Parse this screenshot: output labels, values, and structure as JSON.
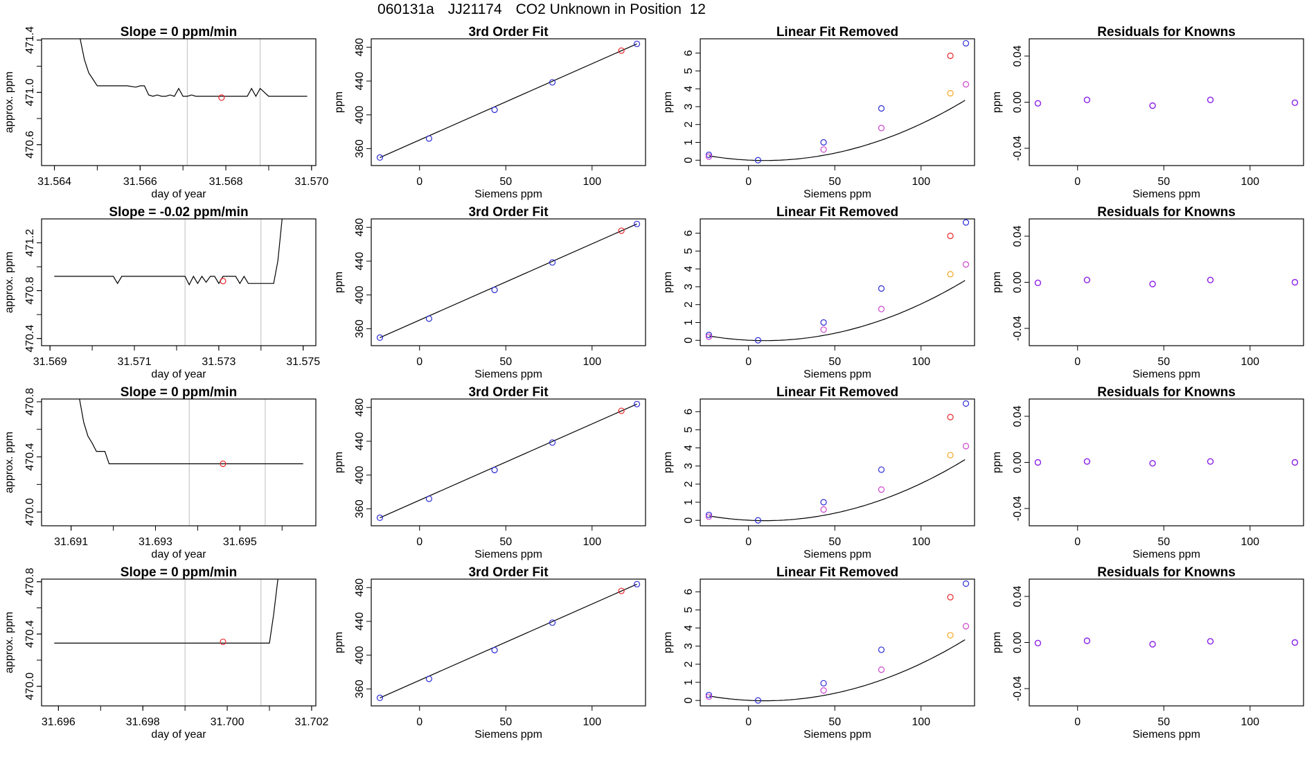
{
  "header": {
    "run": "060131a",
    "tank": "JJ21174",
    "label": "CO2 Unknown in Position  12"
  },
  "colors": {
    "line": "#000000",
    "point_red": "#e8262a",
    "point_blue": "#2b2bd6",
    "point_magenta": "#cc44cc",
    "point_orange": "#f5a623",
    "point_purple": "#8a1ee6",
    "guide": "#bdbdbd"
  },
  "chart_data": [
    {
      "type": "line",
      "row": 1,
      "col": 1,
      "title": "Slope =  0  ppm/min",
      "xlabel": "day of year",
      "ylabel": "approx. ppm",
      "xlim": [
        31.5637,
        31.5701
      ],
      "ylim": [
        470.44,
        471.41
      ],
      "xticks": [
        "31.564",
        "31.566",
        "31.568",
        "31.570"
      ],
      "yticks": [
        "470.6",
        "471.0",
        "471.4"
      ],
      "x": [
        31.5646,
        31.5647,
        31.5648,
        31.5649,
        31.565,
        31.5652,
        31.5653,
        31.5654,
        31.5656,
        31.5657,
        31.5659,
        31.566,
        31.5661,
        31.5662,
        31.5663,
        31.5664,
        31.5665,
        31.5666,
        31.5667,
        31.5668,
        31.5669,
        31.567,
        31.5671,
        31.5672,
        31.5673,
        31.5675,
        31.5676,
        31.5678,
        31.5679,
        31.5681,
        31.5683,
        31.5685,
        31.5686,
        31.5687,
        31.5688,
        31.569,
        31.5692,
        31.5694,
        31.5697,
        31.5699
      ],
      "y": [
        471.41,
        471.25,
        471.15,
        471.1,
        471.05,
        471.05,
        471.05,
        471.05,
        471.05,
        471.05,
        471.04,
        471.05,
        471.05,
        470.98,
        470.97,
        470.98,
        470.97,
        470.97,
        470.98,
        470.97,
        471.03,
        470.97,
        470.97,
        470.98,
        470.97,
        470.97,
        470.97,
        470.97,
        470.97,
        470.97,
        470.97,
        470.97,
        471.03,
        470.97,
        471.03,
        470.97,
        470.97,
        470.97,
        470.97,
        470.97
      ],
      "guides_x": [
        31.5671,
        31.5688
      ],
      "point": [
        31.5679,
        470.96
      ]
    },
    {
      "type": "line",
      "row": 2,
      "col": 1,
      "title": "Slope =  -0.02  ppm/min",
      "xlabel": "day of year",
      "ylabel": "approx. ppm",
      "xlim": [
        31.5688,
        31.5753
      ],
      "ylim": [
        470.34,
        471.4
      ],
      "xticks": [
        "31.569",
        "31.571",
        "31.573",
        "31.575"
      ],
      "yticks": [
        "470.4",
        "470.8",
        "471.2"
      ],
      "x": [
        31.5691,
        31.5695,
        31.57,
        31.5705,
        31.5706,
        31.5707,
        31.571,
        31.5715,
        31.572,
        31.5722,
        31.5723,
        31.5724,
        31.5725,
        31.5726,
        31.5727,
        31.5728,
        31.5729,
        31.573,
        31.5731,
        31.5732,
        31.5733,
        31.5734,
        31.5735,
        31.5736,
        31.5737,
        31.5738,
        31.5739,
        31.574,
        31.5741,
        31.5742,
        31.5743,
        31.5744,
        31.5745
      ],
      "y": [
        470.92,
        470.92,
        470.92,
        470.92,
        470.86,
        470.92,
        470.92,
        470.92,
        470.92,
        470.92,
        470.85,
        470.92,
        470.86,
        470.92,
        470.87,
        470.92,
        470.92,
        470.86,
        470.92,
        470.92,
        470.92,
        470.92,
        470.86,
        470.92,
        470.86,
        470.86,
        470.86,
        470.86,
        470.86,
        470.86,
        470.86,
        471.05,
        471.4
      ],
      "guides_x": [
        31.5722,
        31.574
      ],
      "point": [
        31.5731,
        470.88
      ]
    },
    {
      "type": "line",
      "row": 3,
      "col": 1,
      "title": "Slope =  0  ppm/min",
      "xlabel": "day of year",
      "ylabel": "approx. ppm",
      "xlim": [
        31.6903,
        31.6968
      ],
      "ylim": [
        469.9,
        470.82
      ],
      "xticks": [
        "31.691",
        "31.693",
        "31.695"
      ],
      "yticks": [
        "470.0",
        "470.4",
        "470.8"
      ],
      "x": [
        31.6912,
        31.6913,
        31.6914,
        31.6915,
        31.6916,
        31.6917,
        31.6918,
        31.6919,
        31.692,
        31.6925,
        31.693,
        31.6935,
        31.694,
        31.6945,
        31.695,
        31.6955,
        31.696,
        31.6965
      ],
      "y": [
        470.82,
        470.65,
        470.55,
        470.5,
        470.44,
        470.44,
        470.44,
        470.35,
        470.35,
        470.35,
        470.35,
        470.35,
        470.35,
        470.35,
        470.35,
        470.35,
        470.35,
        470.35
      ],
      "guides_x": [
        31.6938,
        31.6956
      ],
      "point": [
        31.6946,
        470.35
      ]
    },
    {
      "type": "line",
      "row": 4,
      "col": 1,
      "title": "Slope =  0  ppm/min",
      "xlabel": "day of year",
      "ylabel": "approx. ppm",
      "xlim": [
        31.6956,
        31.7021
      ],
      "ylim": [
        469.85,
        470.82
      ],
      "xticks": [
        "31.696",
        "31.698",
        "31.700",
        "31.702"
      ],
      "yticks": [
        "470.0",
        "470.4",
        "470.8"
      ],
      "x": [
        31.6959,
        31.6965,
        31.697,
        31.6975,
        31.698,
        31.6985,
        31.699,
        31.6995,
        31.7,
        31.7005,
        31.701,
        31.7011,
        31.7012
      ],
      "y": [
        470.33,
        470.33,
        470.33,
        470.33,
        470.33,
        470.33,
        470.33,
        470.33,
        470.33,
        470.33,
        470.33,
        470.55,
        470.82
      ],
      "guides_x": [
        31.699,
        31.7008
      ],
      "point": [
        31.6999,
        470.34
      ]
    },
    {
      "type": "scatter",
      "row": 1,
      "col": 2,
      "title": "3rd Order Fit",
      "xlabel": "Siemens ppm",
      "ylabel": "ppm",
      "xlim": [
        -28,
        131
      ],
      "ylim": [
        340,
        490
      ],
      "xticks": [
        0,
        50,
        100
      ],
      "yticks": [
        360,
        400,
        440,
        480
      ],
      "x": [
        -23,
        5.5,
        43.5,
        77,
        117,
        126
      ],
      "y": [
        349.5,
        372,
        406,
        438.5,
        476,
        484
      ],
      "colors": [
        "blue",
        "blue",
        "blue",
        "blue",
        "red",
        "blue"
      ]
    },
    {
      "type": "scatter",
      "row": 2,
      "col": 2,
      "title": "3rd Order Fit",
      "xlabel": "Siemens ppm",
      "ylabel": "ppm",
      "xlim": [
        -28,
        131
      ],
      "ylim": [
        340,
        490
      ],
      "xticks": [
        0,
        50,
        100
      ],
      "yticks": [
        360,
        400,
        440,
        480
      ],
      "x": [
        -23,
        5.5,
        43.5,
        77,
        117,
        126
      ],
      "y": [
        349.5,
        372,
        406,
        438.5,
        476,
        484
      ],
      "colors": [
        "blue",
        "blue",
        "blue",
        "blue",
        "red",
        "blue"
      ]
    },
    {
      "type": "scatter",
      "row": 3,
      "col": 2,
      "title": "3rd Order Fit",
      "xlabel": "Siemens ppm",
      "ylabel": "ppm",
      "xlim": [
        -28,
        131
      ],
      "ylim": [
        340,
        490
      ],
      "xticks": [
        0,
        50,
        100
      ],
      "yticks": [
        360,
        400,
        440,
        480
      ],
      "x": [
        -23,
        5.5,
        43.5,
        77,
        117,
        126
      ],
      "y": [
        349.5,
        372,
        406,
        438.5,
        476,
        484
      ],
      "colors": [
        "blue",
        "blue",
        "blue",
        "blue",
        "red",
        "blue"
      ]
    },
    {
      "type": "scatter",
      "row": 4,
      "col": 2,
      "title": "3rd Order Fit",
      "xlabel": "Siemens ppm",
      "ylabel": "ppm",
      "xlim": [
        -28,
        131
      ],
      "ylim": [
        340,
        490
      ],
      "xticks": [
        0,
        50,
        100
      ],
      "yticks": [
        360,
        400,
        440,
        480
      ],
      "x": [
        -23,
        5.5,
        43.5,
        77,
        117,
        126
      ],
      "y": [
        349.5,
        372,
        406,
        438.5,
        476,
        484
      ],
      "colors": [
        "blue",
        "blue",
        "blue",
        "blue",
        "red",
        "blue"
      ]
    },
    {
      "type": "scatter",
      "row": 1,
      "col": 3,
      "title": "Linear Fit Removed",
      "xlabel": "Siemens ppm",
      "ylabel": "ppm",
      "xlim": [
        -28,
        131
      ],
      "ylim": [
        -0.3,
        6.8
      ],
      "xticks": [
        0,
        50,
        100
      ],
      "yticks": [
        0,
        1,
        2,
        3,
        4,
        5,
        6
      ],
      "x": [
        -23,
        -23,
        5.5,
        43.5,
        43.5,
        77,
        77,
        117,
        117,
        126,
        126
      ],
      "y": [
        0.3,
        0.2,
        0.0,
        1.0,
        0.6,
        2.9,
        1.8,
        5.85,
        3.75,
        6.55,
        4.25
      ],
      "colors": [
        "blue",
        "magenta",
        "blue",
        "blue",
        "magenta",
        "blue",
        "magenta",
        "red",
        "orange",
        "blue",
        "magenta"
      ],
      "curve": [
        0.00025,
        0.0047,
        0.0059
      ]
    },
    {
      "type": "scatter",
      "row": 2,
      "col": 3,
      "title": "Linear Fit Removed",
      "xlabel": "Siemens ppm",
      "ylabel": "ppm",
      "xlim": [
        -28,
        131
      ],
      "ylim": [
        -0.3,
        6.8
      ],
      "xticks": [
        0,
        50,
        100
      ],
      "yticks": [
        0,
        1,
        2,
        3,
        4,
        5,
        6
      ],
      "x": [
        -23,
        -23,
        5.5,
        43.5,
        43.5,
        77,
        77,
        117,
        117,
        126,
        126
      ],
      "y": [
        0.3,
        0.2,
        0.0,
        1.0,
        0.6,
        2.9,
        1.75,
        5.85,
        3.7,
        6.6,
        4.25
      ],
      "colors": [
        "blue",
        "magenta",
        "blue",
        "blue",
        "magenta",
        "blue",
        "magenta",
        "red",
        "orange",
        "blue",
        "magenta"
      ],
      "curve": [
        0.00025,
        0.0047,
        0.0059
      ]
    },
    {
      "type": "scatter",
      "row": 3,
      "col": 3,
      "title": "Linear Fit Removed",
      "xlabel": "Siemens ppm",
      "ylabel": "ppm",
      "xlim": [
        -28,
        131
      ],
      "ylim": [
        -0.3,
        6.7
      ],
      "xticks": [
        0,
        50,
        100
      ],
      "yticks": [
        0,
        1,
        2,
        3,
        4,
        5,
        6
      ],
      "x": [
        -23,
        -23,
        5.5,
        43.5,
        43.5,
        77,
        77,
        117,
        117,
        126,
        126
      ],
      "y": [
        0.3,
        0.2,
        0.0,
        1.0,
        0.6,
        2.8,
        1.7,
        5.7,
        3.6,
        6.45,
        4.1
      ],
      "colors": [
        "blue",
        "magenta",
        "blue",
        "blue",
        "magenta",
        "blue",
        "magenta",
        "red",
        "orange",
        "blue",
        "magenta"
      ],
      "curve": [
        0.00025,
        0.0047,
        0.0059
      ]
    },
    {
      "type": "scatter",
      "row": 4,
      "col": 3,
      "title": "Linear Fit Removed",
      "xlabel": "Siemens ppm",
      "ylabel": "ppm",
      "xlim": [
        -28,
        131
      ],
      "ylim": [
        -0.3,
        6.7
      ],
      "xticks": [
        0,
        50,
        100
      ],
      "yticks": [
        0,
        1,
        2,
        3,
        4,
        5,
        6
      ],
      "x": [
        -23,
        -23,
        5.5,
        43.5,
        43.5,
        77,
        77,
        117,
        117,
        126,
        126
      ],
      "y": [
        0.3,
        0.2,
        0.0,
        0.95,
        0.55,
        2.8,
        1.7,
        5.7,
        3.6,
        6.45,
        4.1
      ],
      "colors": [
        "blue",
        "magenta",
        "blue",
        "blue",
        "magenta",
        "blue",
        "magenta",
        "red",
        "orange",
        "blue",
        "magenta"
      ],
      "curve": [
        0.00025,
        0.0047,
        0.0059
      ]
    },
    {
      "type": "scatter",
      "row": 1,
      "col": 4,
      "title": "Residuals for Knowns",
      "xlabel": "Siemens ppm",
      "ylabel": "ppm",
      "xlim": [
        -28,
        131
      ],
      "ylim": [
        -0.055,
        0.055
      ],
      "xticks": [
        0,
        50,
        100
      ],
      "yticks": [
        "-0.04",
        "0.00",
        "0.04"
      ],
      "x": [
        -23,
        5.5,
        43.5,
        77,
        126
      ],
      "y": [
        -0.001,
        0.002,
        -0.003,
        0.002,
        -0.0005
      ]
    },
    {
      "type": "scatter",
      "row": 2,
      "col": 4,
      "title": "Residuals for Knowns",
      "xlabel": "Siemens ppm",
      "ylabel": "ppm",
      "xlim": [
        -28,
        131
      ],
      "ylim": [
        -0.055,
        0.055
      ],
      "xticks": [
        0,
        50,
        100
      ],
      "yticks": [
        "-0.04",
        "0.00",
        "0.04"
      ],
      "x": [
        -23,
        5.5,
        43.5,
        77,
        126
      ],
      "y": [
        -0.0005,
        0.002,
        -0.0015,
        0.002,
        0.0
      ]
    },
    {
      "type": "scatter",
      "row": 3,
      "col": 4,
      "title": "Residuals for Knowns",
      "xlabel": "Siemens ppm",
      "ylabel": "ppm",
      "xlim": [
        -28,
        131
      ],
      "ylim": [
        -0.055,
        0.055
      ],
      "xticks": [
        0,
        50,
        100
      ],
      "yticks": [
        "-0.04",
        "0.00",
        "0.04"
      ],
      "x": [
        -23,
        5.5,
        43.5,
        77,
        126
      ],
      "y": [
        0.0,
        0.0008,
        -0.0008,
        0.0008,
        0.0
      ]
    },
    {
      "type": "scatter",
      "row": 4,
      "col": 4,
      "title": "Residuals for Knowns",
      "xlabel": "Siemens ppm",
      "ylabel": "ppm",
      "xlim": [
        -28,
        131
      ],
      "ylim": [
        -0.055,
        0.055
      ],
      "xticks": [
        0,
        50,
        100
      ],
      "yticks": [
        "-0.04",
        "0.00",
        "0.04"
      ],
      "x": [
        -23,
        5.5,
        43.5,
        77,
        126
      ],
      "y": [
        -0.0005,
        0.0015,
        -0.0015,
        0.001,
        0.0
      ]
    }
  ]
}
